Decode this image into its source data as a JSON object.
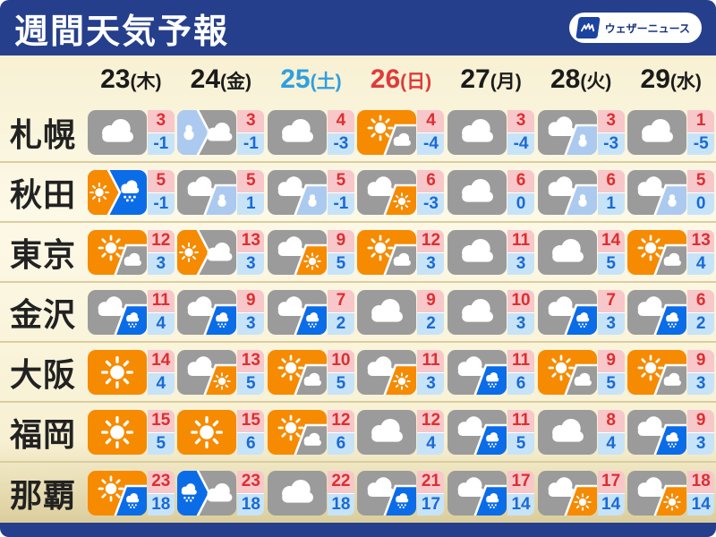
{
  "header": {
    "title": "週間天気予報",
    "logo_text": "ウェザーニュース"
  },
  "colors": {
    "navy": "#263f8c",
    "sunny_bg": "#f68a00",
    "cloudy_bg": "#9b9b9b",
    "rain_bg": "#0b6ce8",
    "snow_bg": "#accaf0",
    "high_text": "#dd2f2f",
    "high_bg": "#f8c7ca",
    "low_text": "#1a6ad6",
    "low_bg": "#c7e3f8",
    "weekday_text": "#1b1b1b",
    "saturday_text": "#2e9fe0",
    "sunday_text": "#e03a3a"
  },
  "dates": [
    {
      "num": "23",
      "day": "(木)",
      "color": "#1b1b1b"
    },
    {
      "num": "24",
      "day": "(金)",
      "color": "#1b1b1b"
    },
    {
      "num": "25",
      "day": "(土)",
      "color": "#2e9fe0"
    },
    {
      "num": "26",
      "day": "(日)",
      "color": "#e03a3a"
    },
    {
      "num": "27",
      "day": "(月)",
      "color": "#1b1b1b"
    },
    {
      "num": "28",
      "day": "(火)",
      "color": "#1b1b1b"
    },
    {
      "num": "29",
      "day": "(水)",
      "color": "#1b1b1b"
    }
  ],
  "chart_data": {
    "type": "table",
    "title": "週間天気予報",
    "columns": [
      "23(木)",
      "24(金)",
      "25(土)",
      "26(日)",
      "27(月)",
      "28(火)",
      "29(水)"
    ],
    "rows": [
      {
        "city": "札幌",
        "cells": [
          {
            "icon": "cloudy",
            "weather": "曇り",
            "high": 3,
            "low": -1
          },
          {
            "icon": "snow-then-cloudy-arrow",
            "weather": "雪のち曇り",
            "high": 3,
            "low": -1
          },
          {
            "icon": "cloudy",
            "weather": "曇り",
            "high": 4,
            "low": -3
          },
          {
            "icon": "sunny-then-cloudy",
            "weather": "晴れのち曇り",
            "high": 4,
            "low": -4
          },
          {
            "icon": "cloudy",
            "weather": "曇り",
            "high": 3,
            "low": -4
          },
          {
            "icon": "cloudy-then-snow",
            "weather": "曇りのち雪",
            "high": 3,
            "low": -3
          },
          {
            "icon": "cloudy",
            "weather": "曇り",
            "high": 1,
            "low": -5
          }
        ]
      },
      {
        "city": "秋田",
        "cells": [
          {
            "icon": "sunny-then-rain-arrow",
            "weather": "晴れのち雨",
            "high": 5,
            "low": -1
          },
          {
            "icon": "cloudy-then-snow",
            "weather": "曇りのち雪",
            "high": 5,
            "low": 1
          },
          {
            "icon": "cloudy-then-snow",
            "weather": "曇りのち雪",
            "high": 5,
            "low": -1
          },
          {
            "icon": "cloudy-then-sunny",
            "weather": "曇りのち晴れ",
            "high": 6,
            "low": -3
          },
          {
            "icon": "cloudy",
            "weather": "曇り",
            "high": 6,
            "low": 0
          },
          {
            "icon": "cloudy-then-snow",
            "weather": "曇りのち雪",
            "high": 6,
            "low": 1
          },
          {
            "icon": "cloudy-then-snow",
            "weather": "曇りのち雪",
            "high": 5,
            "low": 0
          }
        ]
      },
      {
        "city": "東京",
        "cells": [
          {
            "icon": "sunny-then-cloudy",
            "weather": "晴れのち曇り",
            "high": 12,
            "low": 3
          },
          {
            "icon": "sunny-then-cloudy-arrow",
            "weather": "晴れのち曇り",
            "high": 13,
            "low": 3
          },
          {
            "icon": "cloudy-then-sunny",
            "weather": "曇りのち晴れ",
            "high": 9,
            "low": 5
          },
          {
            "icon": "sunny-then-cloudy",
            "weather": "晴れのち曇り",
            "high": 12,
            "low": 3
          },
          {
            "icon": "cloudy",
            "weather": "曇り",
            "high": 11,
            "low": 3
          },
          {
            "icon": "cloudy",
            "weather": "曇り",
            "high": 14,
            "low": 5
          },
          {
            "icon": "sunny-then-cloudy",
            "weather": "晴れのち曇り",
            "high": 13,
            "low": 4
          }
        ]
      },
      {
        "city": "金沢",
        "cells": [
          {
            "icon": "cloudy-then-rain",
            "weather": "曇りのち雨",
            "high": 11,
            "low": 4
          },
          {
            "icon": "cloudy-then-rain",
            "weather": "曇りのち雨",
            "high": 9,
            "low": 3
          },
          {
            "icon": "cloudy-then-rain",
            "weather": "曇りのち雨",
            "high": 7,
            "low": 2
          },
          {
            "icon": "cloudy",
            "weather": "曇り",
            "high": 9,
            "low": 2
          },
          {
            "icon": "cloudy",
            "weather": "曇り",
            "high": 10,
            "low": 3
          },
          {
            "icon": "cloudy-then-rain",
            "weather": "曇りのち雨",
            "high": 7,
            "low": 3
          },
          {
            "icon": "cloudy-then-rain",
            "weather": "曇りのち雨",
            "high": 6,
            "low": 2
          }
        ]
      },
      {
        "city": "大阪",
        "cells": [
          {
            "icon": "sunny",
            "weather": "晴れ",
            "high": 14,
            "low": 4
          },
          {
            "icon": "cloudy-then-sunny",
            "weather": "曇りのち晴れ",
            "high": 13,
            "low": 5
          },
          {
            "icon": "sunny-then-cloudy",
            "weather": "晴れのち曇り",
            "high": 10,
            "low": 5
          },
          {
            "icon": "cloudy-then-sunny",
            "weather": "曇りのち晴れ",
            "high": 11,
            "low": 3
          },
          {
            "icon": "cloudy-then-rain",
            "weather": "曇りのち雨",
            "high": 11,
            "low": 6
          },
          {
            "icon": "sunny-then-cloudy",
            "weather": "晴れのち曇り",
            "high": 9,
            "low": 5
          },
          {
            "icon": "sunny-then-cloudy",
            "weather": "晴れのち曇り",
            "high": 9,
            "low": 3
          }
        ]
      },
      {
        "city": "福岡",
        "cells": [
          {
            "icon": "sunny",
            "weather": "晴れ",
            "high": 15,
            "low": 5
          },
          {
            "icon": "sunny",
            "weather": "晴れ",
            "high": 15,
            "low": 6
          },
          {
            "icon": "sunny-then-cloudy",
            "weather": "晴れのち曇り",
            "high": 12,
            "low": 6
          },
          {
            "icon": "cloudy",
            "weather": "曇り",
            "high": 12,
            "low": 4
          },
          {
            "icon": "cloudy-then-rain",
            "weather": "曇りのち雨",
            "high": 11,
            "low": 5
          },
          {
            "icon": "cloudy",
            "weather": "曇り",
            "high": 8,
            "low": 4
          },
          {
            "icon": "cloudy-then-rain",
            "weather": "曇りのち雨",
            "high": 9,
            "low": 3
          }
        ]
      },
      {
        "city": "那覇",
        "cells": [
          {
            "icon": "sunny-then-rain",
            "weather": "晴れのち雨",
            "high": 23,
            "low": 18
          },
          {
            "icon": "rain-then-cloudy-arrow",
            "weather": "雨のち曇り",
            "high": 23,
            "low": 18
          },
          {
            "icon": "cloudy",
            "weather": "曇り",
            "high": 22,
            "low": 18
          },
          {
            "icon": "cloudy-then-rain",
            "weather": "曇りのち雨",
            "high": 21,
            "low": 17
          },
          {
            "icon": "cloudy-then-rain",
            "weather": "曇りのち雨",
            "high": 17,
            "low": 14
          },
          {
            "icon": "cloudy-then-sunny",
            "weather": "曇りのち晴れ",
            "high": 17,
            "low": 14
          },
          {
            "icon": "cloudy-then-sunny",
            "weather": "曇りのち晴れ",
            "high": 18,
            "low": 14
          }
        ]
      }
    ]
  }
}
